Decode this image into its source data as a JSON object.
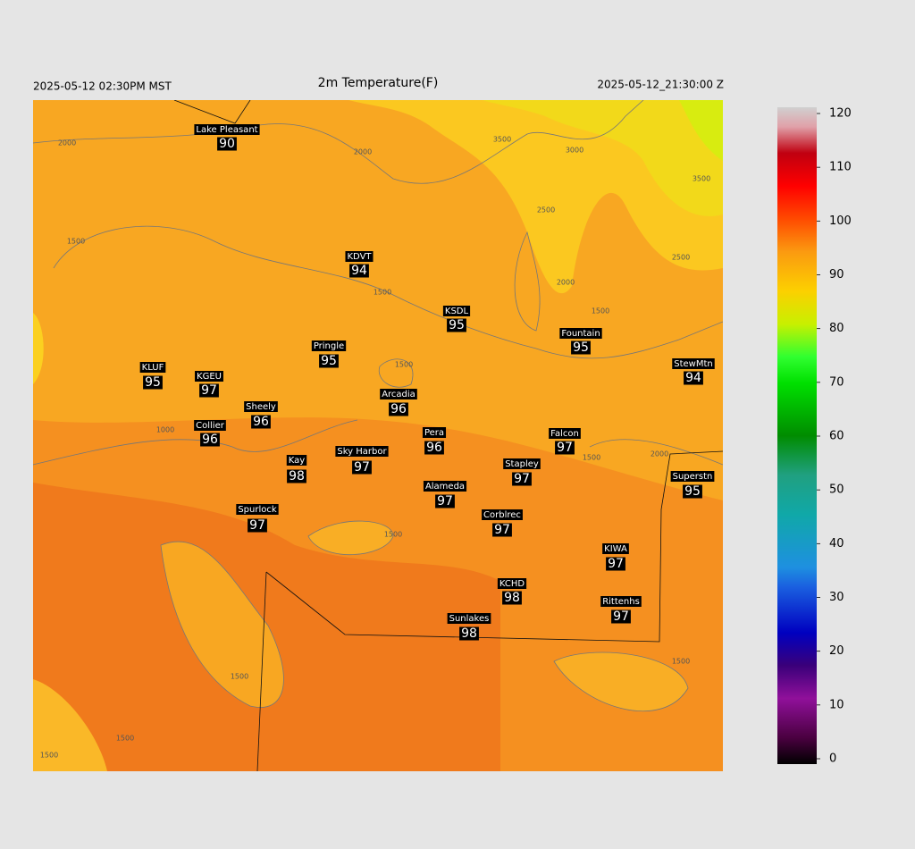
{
  "header": {
    "left": "2025-05-12 02:30PM MST",
    "title": "2m Temperature(F)",
    "right": "2025-05-12_21:30:00 Z"
  },
  "stations": [
    {
      "name": "Lake Pleasant",
      "value": 90
    },
    {
      "name": "KDVT",
      "value": 94
    },
    {
      "name": "KSDL",
      "value": 95
    },
    {
      "name": "Fountain",
      "value": 95
    },
    {
      "name": "StewMtn",
      "value": 94
    },
    {
      "name": "KLUF",
      "value": 95
    },
    {
      "name": "KGEU",
      "value": 97
    },
    {
      "name": "Pringle",
      "value": 95
    },
    {
      "name": "Arcadia",
      "value": 96
    },
    {
      "name": "Sheely",
      "value": 96
    },
    {
      "name": "Collier",
      "value": 96
    },
    {
      "name": "Pera",
      "value": 96
    },
    {
      "name": "Falcon",
      "value": 97
    },
    {
      "name": "Kay",
      "value": 98
    },
    {
      "name": "Sky Harbor",
      "value": 97
    },
    {
      "name": "Stapley",
      "value": 97
    },
    {
      "name": "Superstn",
      "value": 95
    },
    {
      "name": "Alameda",
      "value": 97
    },
    {
      "name": "Spurlock",
      "value": 97
    },
    {
      "name": "Corblrec",
      "value": 97
    },
    {
      "name": "KIWA",
      "value": 97
    },
    {
      "name": "KCHD",
      "value": 98
    },
    {
      "name": "Rittenhs",
      "value": 97
    },
    {
      "name": "Sunlakes",
      "value": 98
    }
  ],
  "contour_labels": [
    "2000",
    "2000",
    "3500",
    "3000",
    "2500",
    "3500",
    "2500",
    "2000",
    "1500",
    "1500",
    "1500",
    "1500",
    "1000",
    "2000",
    "1500",
    "1500",
    "1500",
    "1500",
    "1500",
    "1500"
  ],
  "colorbar": {
    "lim": [
      0,
      120
    ],
    "ticks": [
      0,
      10,
      20,
      30,
      40,
      50,
      60,
      70,
      80,
      90,
      100,
      110,
      120
    ]
  }
}
